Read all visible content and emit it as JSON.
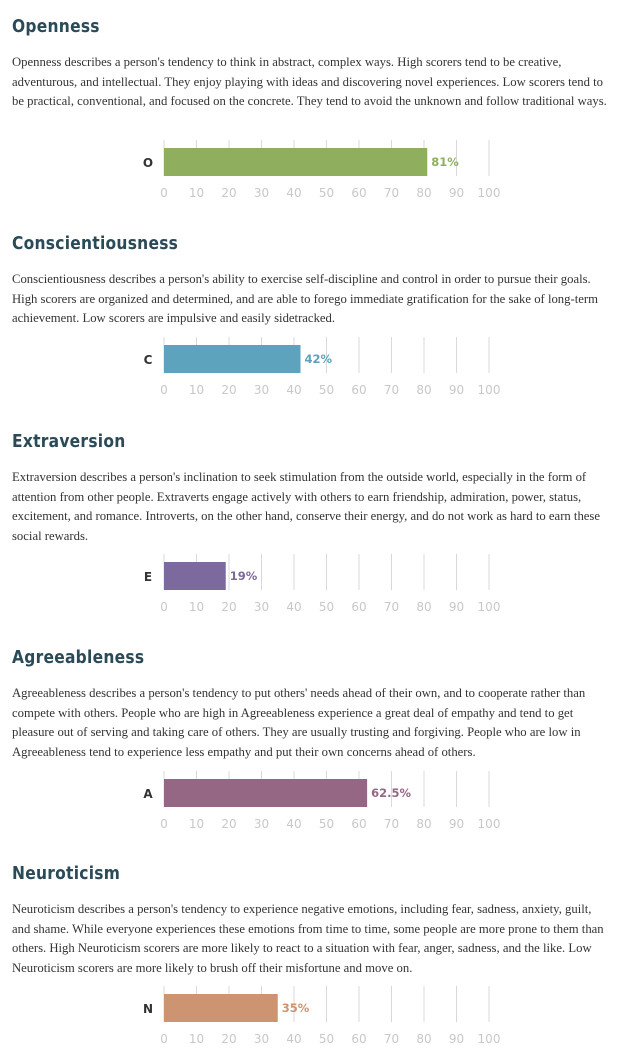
{
  "sections": [
    {
      "title": "Openness",
      "description": "Openness describes a person's tendency to think in abstract, complex ways. High scorers tend to be creative, adventurous, and intellectual. They enjoy playing with ideas and discovering novel experiences. Low scorers tend to be practical, conventional, and focused on the concrete. They tend to avoid the unknown and follow traditional ways.",
      "letter": "O",
      "value_label": "81%",
      "color": "#8faf5f"
    },
    {
      "title": "Conscientiousness",
      "description": "Conscientiousness describes a person's ability to exercise self-discipline and control in order to pursue their goals. High scorers are organized and determined, and are able to forego immediate gratification for the sake of long-term achievement. Low scorers are impulsive and easily sidetracked.",
      "letter": "C",
      "value_label": "42%",
      "color": "#5da3bd"
    },
    {
      "title": "Extraversion",
      "description": "Extraversion describes a person's inclination to seek stimulation from the outside world, especially in the form of attention from other people. Extraverts engage actively with others to earn friendship, admiration, power, status, excitement, and romance. Introverts, on the other hand, conserve their energy, and do not work as hard to earn these social rewards.",
      "letter": "E",
      "value_label": "19%",
      "color": "#7c6a9e"
    },
    {
      "title": "Agreeableness",
      "description": "Agreeableness describes a person's tendency to put others' needs ahead of their own, and to cooperate rather than compete with others. People who are high in Agreeableness experience a great deal of empathy and tend to get pleasure out of serving and taking care of others. They are usually trusting and forgiving. People who are low in Agreeableness tend to experience less empathy and put their own concerns ahead of others.",
      "letter": "A",
      "value_label": "62.5%",
      "color": "#966685"
    },
    {
      "title": "Neuroticism",
      "description": "Neuroticism describes a person's tendency to experience negative emotions, including fear, sadness, anxiety, guilt, and shame. While everyone experiences these emotions from time to time, some people are more prone to them than others. High Neuroticism scorers are more likely to react to a situation with fear, anger, sadness, and the like. Low Neuroticism scorers are more likely to brush off their misfortune and move on.",
      "letter": "N",
      "value_label": "35%",
      "color": "#cc9470"
    }
  ],
  "chart_data": [
    {
      "type": "bar",
      "categories": [
        "O"
      ],
      "values": [
        81
      ],
      "xlim": [
        0,
        100
      ],
      "ticks": [
        0,
        10,
        20,
        30,
        40,
        50,
        60,
        70,
        80,
        90,
        100
      ],
      "grid": true
    },
    {
      "type": "bar",
      "categories": [
        "C"
      ],
      "values": [
        42
      ],
      "xlim": [
        0,
        100
      ],
      "ticks": [
        0,
        10,
        20,
        30,
        40,
        50,
        60,
        70,
        80,
        90,
        100
      ],
      "grid": true
    },
    {
      "type": "bar",
      "categories": [
        "E"
      ],
      "values": [
        19
      ],
      "xlim": [
        0,
        100
      ],
      "ticks": [
        0,
        10,
        20,
        30,
        40,
        50,
        60,
        70,
        80,
        90,
        100
      ],
      "grid": true
    },
    {
      "type": "bar",
      "categories": [
        "A"
      ],
      "values": [
        62.5
      ],
      "xlim": [
        0,
        100
      ],
      "ticks": [
        0,
        10,
        20,
        30,
        40,
        50,
        60,
        70,
        80,
        90,
        100
      ],
      "grid": true
    },
    {
      "type": "bar",
      "categories": [
        "N"
      ],
      "values": [
        35
      ],
      "xlim": [
        0,
        100
      ],
      "ticks": [
        0,
        10,
        20,
        30,
        40,
        50,
        60,
        70,
        80,
        90,
        100
      ],
      "grid": true
    }
  ]
}
